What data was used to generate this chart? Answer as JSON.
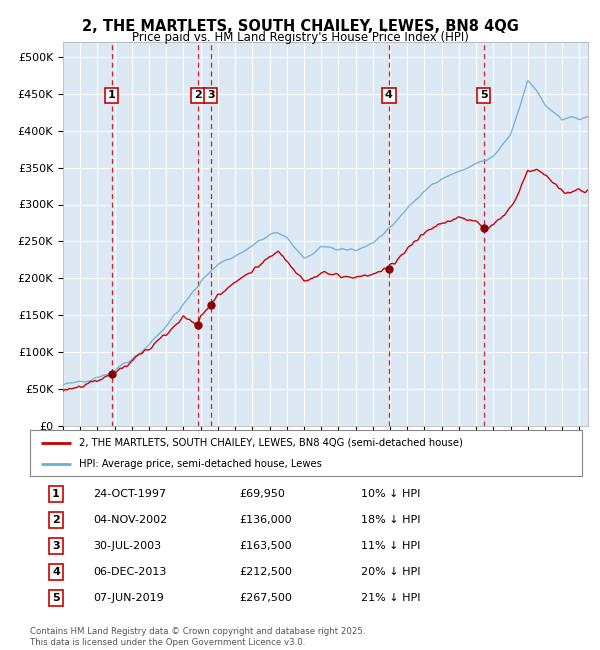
{
  "title": "2, THE MARTLETS, SOUTH CHAILEY, LEWES, BN8 4QG",
  "subtitle": "Price paid vs. HM Land Registry's House Price Index (HPI)",
  "background_color": "#ffffff",
  "plot_bg_color": "#dce9f5",
  "grid_color": "#ffffff",
  "ylim": [
    0,
    520000
  ],
  "yticks": [
    0,
    50000,
    100000,
    150000,
    200000,
    250000,
    300000,
    350000,
    400000,
    450000,
    500000
  ],
  "ytick_labels": [
    "£0",
    "£50K",
    "£100K",
    "£150K",
    "£200K",
    "£250K",
    "£300K",
    "£350K",
    "£400K",
    "£450K",
    "£500K"
  ],
  "xlim_start": 1995.0,
  "xlim_end": 2025.5,
  "sale_dates": [
    1997.82,
    2002.84,
    2003.58,
    2013.93,
    2019.44
  ],
  "sale_prices": [
    69950,
    136000,
    163500,
    212500,
    267500
  ],
  "sale_labels": [
    "1",
    "2",
    "3",
    "4",
    "5"
  ],
  "vline_dates": [
    1997.82,
    2002.84,
    2003.58,
    2013.93,
    2019.44
  ],
  "legend_line1": "2, THE MARTLETS, SOUTH CHAILEY, LEWES, BN8 4QG (semi-detached house)",
  "legend_line2": "HPI: Average price, semi-detached house, Lewes",
  "table_entries": [
    [
      "1",
      "24-OCT-1997",
      "£69,950",
      "10% ↓ HPI"
    ],
    [
      "2",
      "04-NOV-2002",
      "£136,000",
      "18% ↓ HPI"
    ],
    [
      "3",
      "30-JUL-2003",
      "£163,500",
      "11% ↓ HPI"
    ],
    [
      "4",
      "06-DEC-2013",
      "£212,500",
      "20% ↓ HPI"
    ],
    [
      "5",
      "07-JUN-2019",
      "£267,500",
      "21% ↓ HPI"
    ]
  ],
  "footer": "Contains HM Land Registry data © Crown copyright and database right 2025.\nThis data is licensed under the Open Government Licence v3.0.",
  "hpi_color": "#6baed6",
  "price_color": "#cc0000",
  "vline_color": "#cc0000",
  "dot_color": "#8b0000"
}
